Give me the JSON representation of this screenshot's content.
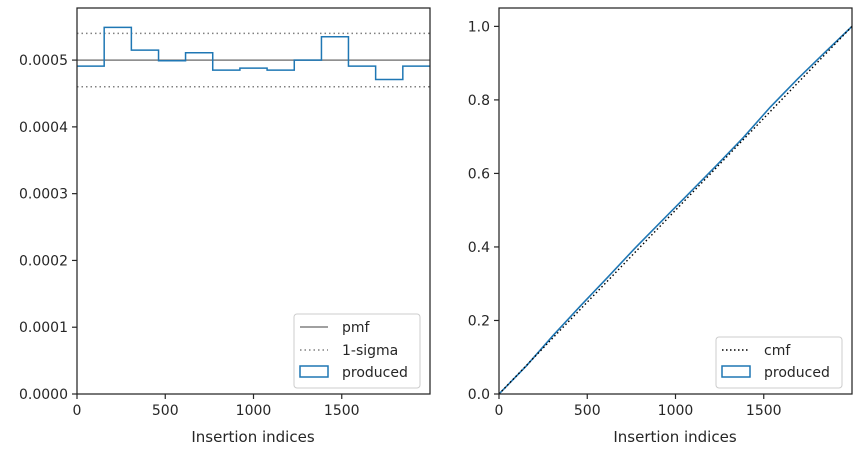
{
  "chart_data": [
    {
      "type": "histogram",
      "xlabel": "Insertion indices",
      "ylabel": "",
      "xlim": [
        0,
        2000
      ],
      "ylim": [
        0,
        0.000578
      ],
      "x_ticks": [
        0,
        500,
        1000,
        1500
      ],
      "x_tick_labels": [
        "0",
        "500",
        "1000",
        "1500"
      ],
      "y_ticks": [
        0,
        0.0001,
        0.0002,
        0.0003,
        0.0004,
        0.0005
      ],
      "y_tick_labels": [
        "0.0000",
        "0.0001",
        "0.0002",
        "0.0003",
        "0.0004",
        "0.0005"
      ],
      "grid": false,
      "legend_position": "lower right",
      "legend": [
        "pmf",
        "1-sigma",
        "produced"
      ],
      "pmf": 0.0005,
      "sigma_band": [
        0.00046,
        0.00054
      ],
      "series": [
        {
          "name": "produced",
          "bin_edges": [
            0,
            154,
            308,
            462,
            615,
            769,
            923,
            1077,
            1231,
            1385,
            1538,
            1692,
            1846,
            2000
          ],
          "values": [
            0.000491,
            0.000549,
            0.000515,
            0.000499,
            0.000511,
            0.000485,
            0.000488,
            0.000485,
            0.0005,
            0.000535,
            0.000491,
            0.000471,
            0.000491
          ]
        }
      ]
    },
    {
      "type": "line",
      "xlabel": "Insertion indices",
      "ylabel": "",
      "xlim": [
        0,
        2000
      ],
      "ylim": [
        0,
        1.05
      ],
      "x_ticks": [
        0,
        500,
        1000,
        1500
      ],
      "x_tick_labels": [
        "0",
        "500",
        "1000",
        "1500"
      ],
      "y_ticks": [
        0,
        0.2,
        0.4,
        0.6,
        0.8,
        1.0
      ],
      "y_tick_labels": [
        "0.0",
        "0.2",
        "0.4",
        "0.6",
        "0.8",
        "1.0"
      ],
      "grid": false,
      "legend_position": "lower right",
      "legend": [
        "cmf",
        "produced"
      ],
      "series": [
        {
          "name": "cmf",
          "x": [
            0,
            2000
          ],
          "y": [
            0,
            1.0
          ]
        },
        {
          "name": "produced",
          "x": [
            0,
            154,
            308,
            462,
            615,
            769,
            923,
            1077,
            1231,
            1385,
            1538,
            1692,
            1846,
            2000
          ],
          "y": [
            0,
            0.076,
            0.16,
            0.24,
            0.317,
            0.396,
            0.471,
            0.546,
            0.621,
            0.698,
            0.781,
            0.857,
            0.929,
            1.0
          ]
        }
      ]
    }
  ],
  "colors": {
    "axes": "#262626",
    "text": "#262626",
    "pmf": "#808080",
    "sigma": "#808080",
    "produced": "#1f77b4",
    "cmf": "#000000"
  }
}
